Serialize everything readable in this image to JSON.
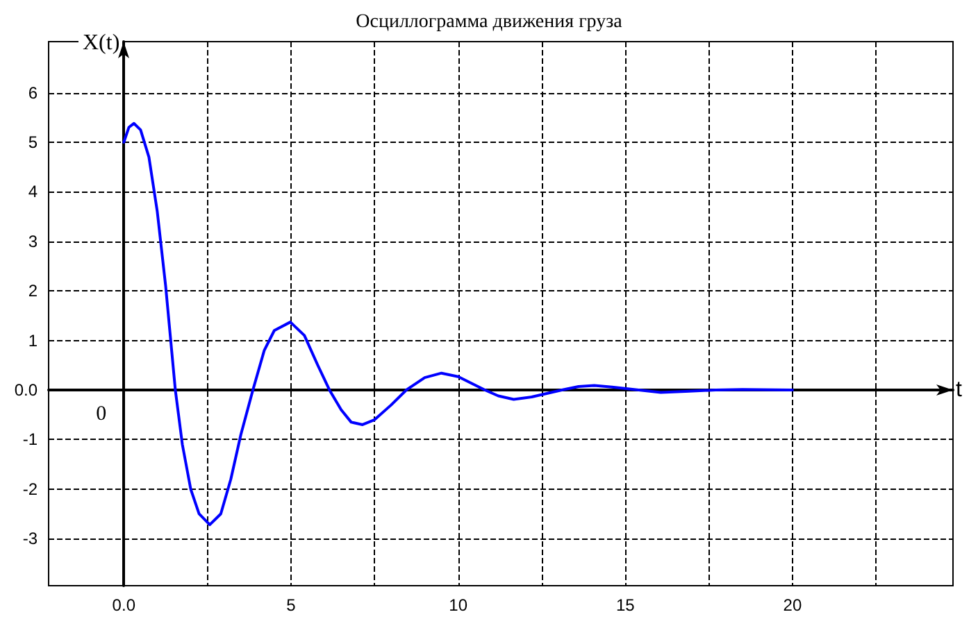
{
  "chart_data": {
    "type": "line",
    "title": "Осциллограмма движения груза",
    "xlabel": "t",
    "ylabel": "X(t)",
    "annotations": [
      "0"
    ],
    "x": [
      0,
      0.15,
      0.3,
      0.5,
      0.75,
      1.0,
      1.25,
      1.54,
      1.75,
      2.0,
      2.25,
      2.57,
      2.9,
      3.2,
      3.5,
      3.86,
      4.2,
      4.5,
      4.98,
      5.4,
      5.8,
      6.15,
      6.5,
      6.8,
      7.14,
      7.5,
      8.0,
      8.45,
      9.0,
      9.5,
      10.0,
      10.8,
      11.2,
      11.66,
      12.2,
      13.1,
      13.6,
      14.07,
      14.6,
      15.4,
      16.06,
      16.8,
      17.7,
      18.5,
      20
    ],
    "series": [
      {
        "color": "#0000ff",
        "values": [
          5.0,
          5.3,
          5.38,
          5.25,
          4.7,
          3.6,
          2.1,
          0,
          -1.1,
          -2.0,
          -2.5,
          -2.72,
          -2.5,
          -1.8,
          -0.9,
          0,
          0.8,
          1.2,
          1.37,
          1.1,
          0.5,
          0,
          -0.4,
          -0.65,
          -0.7,
          -0.6,
          -0.3,
          0,
          0.25,
          0.34,
          0.27,
          0,
          -0.12,
          -0.19,
          -0.14,
          0,
          0.07,
          0.09,
          0.06,
          0,
          -0.05,
          -0.03,
          0,
          0.01,
          0
        ]
      }
    ],
    "xlim": [
      -2.25,
      24.8
    ],
    "ylim": [
      -3.95,
      7.03
    ],
    "xticks": [
      {
        "value": 0,
        "label": "0.0"
      },
      {
        "value": 2.5,
        "label": null
      },
      5,
      {
        "value": 7.5,
        "label": null
      },
      10,
      {
        "value": 12.5,
        "label": null
      },
      15,
      {
        "value": 17.5,
        "label": null
      },
      20,
      {
        "value": 22.5,
        "label": null
      }
    ],
    "yticks": [
      -3,
      -2,
      -1,
      {
        "value": 0,
        "label": "0.0"
      },
      1,
      2,
      3,
      4,
      5,
      6
    ],
    "grid": true,
    "marker": "none",
    "line_style": "solid"
  }
}
